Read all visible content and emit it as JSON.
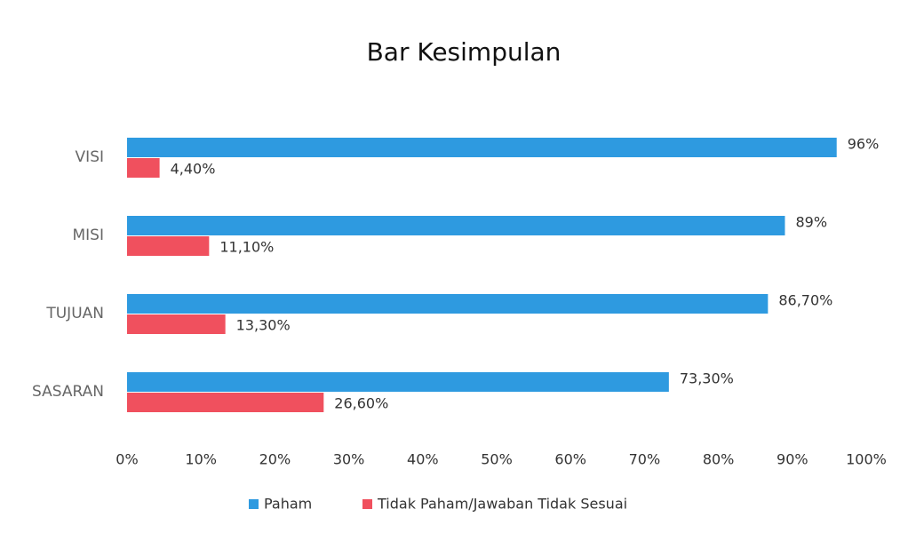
{
  "chart_data": {
    "type": "hbar",
    "title": "Bar Kesimpulan",
    "categories": [
      "VISI",
      "MISI",
      "TUJUAN",
      "SASARAN"
    ],
    "series": [
      {
        "name": "Paham",
        "color": "#2e9ae0",
        "values": [
          96,
          89,
          86.7,
          73.3
        ],
        "value_labels": [
          "96%",
          "89%",
          "86,70%",
          "73,30%"
        ]
      },
      {
        "name": "Tidak Paham/Jawaban Tidak Sesuai",
        "color": "#f0505e",
        "values": [
          4.4,
          11.1,
          13.3,
          26.6
        ],
        "value_labels": [
          "4,40%",
          "11,10%",
          "13,30%",
          "26,60%"
        ]
      }
    ],
    "xlim": [
      0,
      100
    ],
    "xticks": [
      {
        "value": 0,
        "label": "0%"
      },
      {
        "value": 10,
        "label": "10%"
      },
      {
        "value": 20,
        "label": "20%"
      },
      {
        "value": 30,
        "label": "30%"
      },
      {
        "value": 40,
        "label": "40%"
      },
      {
        "value": 50,
        "label": "50%"
      },
      {
        "value": 60,
        "label": "60%"
      },
      {
        "value": 70,
        "label": "70%"
      },
      {
        "value": 80,
        "label": "80%"
      },
      {
        "value": 90,
        "label": "90%"
      },
      {
        "value": 100,
        "label": "100%"
      }
    ],
    "grid": false,
    "legend": "bottom"
  }
}
